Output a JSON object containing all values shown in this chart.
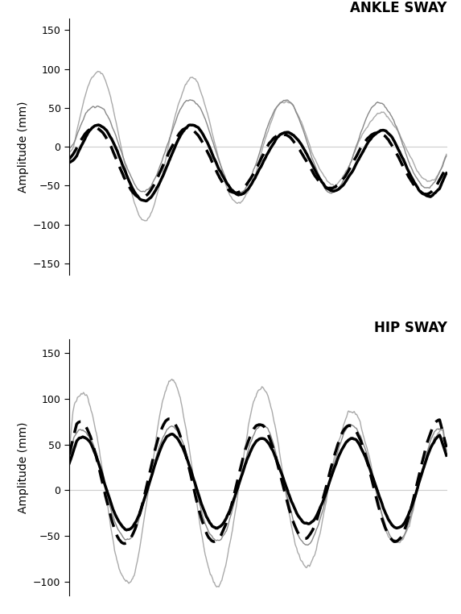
{
  "fig_width": 5.73,
  "fig_height": 7.62,
  "dpi": 100,
  "background_color": "#ffffff",
  "subplot1": {
    "title": "ANKLE SWAY",
    "ylabel": "Amplitude (mm)",
    "ylim": [
      -165,
      165
    ],
    "yticks": [
      -150,
      -100,
      -50,
      0,
      50,
      100,
      150
    ],
    "xlim": [
      0,
      500
    ]
  },
  "subplot2": {
    "title": "HIP SWAY",
    "ylabel": "Amplitude (mm)",
    "ylim": [
      -115,
      165
    ],
    "yticks": [
      -100,
      -50,
      0,
      50,
      100,
      150
    ],
    "xlim": [
      0,
      500
    ]
  },
  "line_colors": {
    "solid_black_thick": "#000000",
    "dashed_black_thick": "#000000",
    "solid_gray_thin": "#aaaaaa",
    "solid_gray_thin2": "#888888"
  },
  "line_widths": {
    "thick": 2.5,
    "thin": 1.0
  }
}
